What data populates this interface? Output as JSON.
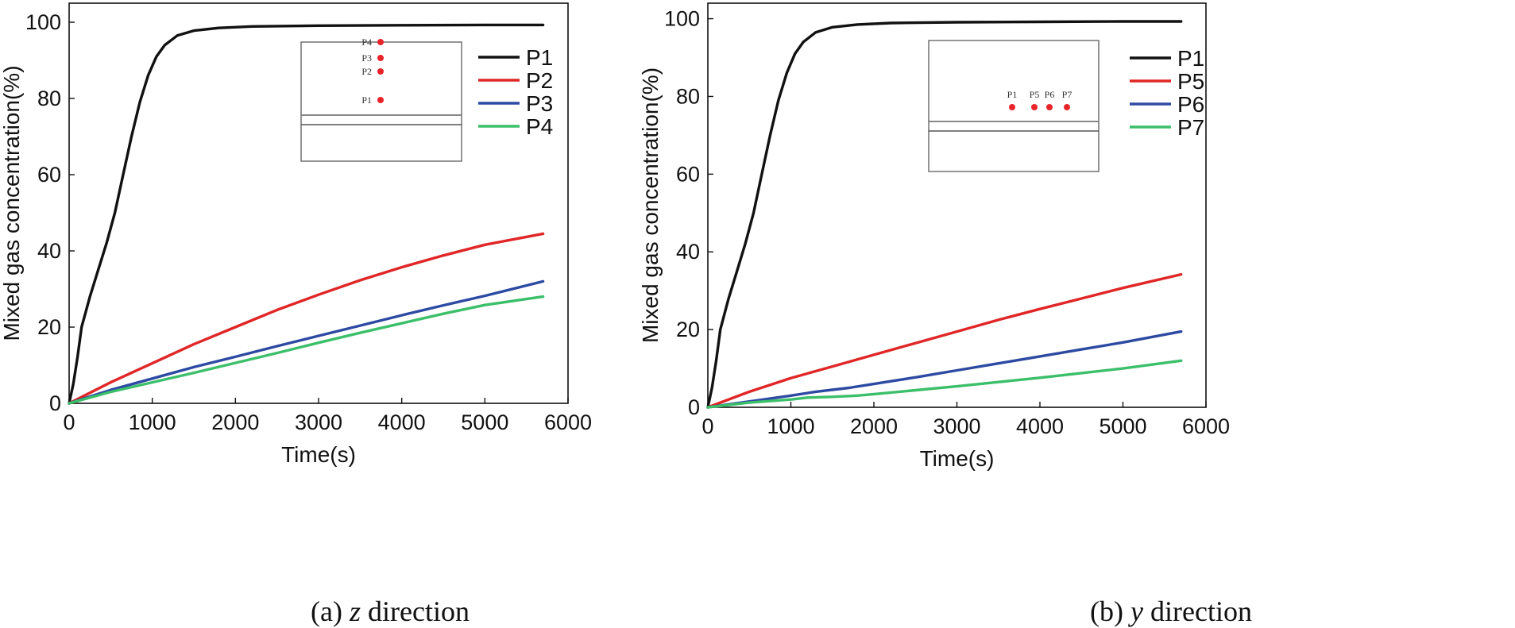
{
  "chart_data": [
    {
      "type": "line",
      "panel": "a",
      "caption": {
        "prefix": "(a) ",
        "axis": "z",
        "suffix": " direction"
      },
      "xlabel": "Time(s)",
      "ylabel": "Mixed gas concentration(%)",
      "xlim": [
        0,
        6000
      ],
      "ylim": [
        0,
        105
      ],
      "xticks": [
        0,
        1000,
        2000,
        3000,
        4000,
        5000,
        6000
      ],
      "yticks": [
        0,
        20,
        40,
        60,
        80,
        100
      ],
      "grid": false,
      "legend_position": "top-right",
      "series": [
        {
          "name": "P1",
          "color": "#111111",
          "points": [
            [
              0,
              0
            ],
            [
              50,
              5
            ],
            [
              100,
              12
            ],
            [
              150,
              20
            ],
            [
              250,
              28
            ],
            [
              350,
              35
            ],
            [
              450,
              42
            ],
            [
              550,
              50
            ],
            [
              650,
              60
            ],
            [
              750,
              70
            ],
            [
              850,
              79
            ],
            [
              950,
              86
            ],
            [
              1050,
              91
            ],
            [
              1150,
              94
            ],
            [
              1300,
              96.5
            ],
            [
              1500,
              97.8
            ],
            [
              1800,
              98.5
            ],
            [
              2200,
              98.9
            ],
            [
              3000,
              99.1
            ],
            [
              4000,
              99.2
            ],
            [
              5000,
              99.3
            ],
            [
              5700,
              99.3
            ]
          ]
        },
        {
          "name": "P2",
          "color": "#e02626",
          "points": [
            [
              0,
              0
            ],
            [
              500,
              5.5
            ],
            [
              1000,
              10.5
            ],
            [
              1500,
              15.5
            ],
            [
              2000,
              20
            ],
            [
              2500,
              24.5
            ],
            [
              3000,
              28.5
            ],
            [
              3500,
              32.3
            ],
            [
              4000,
              35.7
            ],
            [
              4500,
              38.8
            ],
            [
              5000,
              41.6
            ],
            [
              5700,
              44.5
            ]
          ]
        },
        {
          "name": "P3",
          "color": "#2d4aa3",
          "points": [
            [
              0,
              0
            ],
            [
              500,
              3.5
            ],
            [
              1000,
              6.5
            ],
            [
              1500,
              9.5
            ],
            [
              2000,
              12.2
            ],
            [
              2500,
              15
            ],
            [
              3000,
              17.7
            ],
            [
              3500,
              20.4
            ],
            [
              4000,
              23.1
            ],
            [
              4500,
              25.7
            ],
            [
              5000,
              28.2
            ],
            [
              5700,
              32
            ]
          ]
        },
        {
          "name": "P4",
          "color": "#3cbf6a",
          "points": [
            [
              0,
              0
            ],
            [
              500,
              3
            ],
            [
              1000,
              5.5
            ],
            [
              1500,
              8
            ],
            [
              2000,
              10.6
            ],
            [
              2500,
              13.2
            ],
            [
              3000,
              15.9
            ],
            [
              3500,
              18.5
            ],
            [
              4000,
              21
            ],
            [
              4500,
              23.5
            ],
            [
              5000,
              25.8
            ],
            [
              5700,
              28
            ]
          ]
        }
      ],
      "inset": {
        "points": [
          "P4",
          "P3",
          "P2",
          "P1"
        ]
      }
    },
    {
      "type": "line",
      "panel": "b",
      "caption": {
        "prefix": "(b) ",
        "axis": "y",
        "suffix": " direction"
      },
      "xlabel": "Time(s)",
      "ylabel": "Mixed gas concentration(%)",
      "xlim": [
        0,
        6000
      ],
      "ylim": [
        0,
        104
      ],
      "xticks": [
        0,
        1000,
        2000,
        3000,
        4000,
        5000,
        6000
      ],
      "yticks": [
        0,
        20,
        40,
        60,
        80,
        100
      ],
      "grid": false,
      "legend_position": "top-right",
      "series": [
        {
          "name": "P1",
          "color": "#111111",
          "points": [
            [
              0,
              0
            ],
            [
              50,
              5
            ],
            [
              100,
              12
            ],
            [
              150,
              20
            ],
            [
              250,
              28
            ],
            [
              350,
              35
            ],
            [
              450,
              42
            ],
            [
              550,
              50
            ],
            [
              650,
              60
            ],
            [
              750,
              70
            ],
            [
              850,
              79
            ],
            [
              950,
              86
            ],
            [
              1050,
              91
            ],
            [
              1150,
              94
            ],
            [
              1300,
              96.5
            ],
            [
              1500,
              97.8
            ],
            [
              1800,
              98.5
            ],
            [
              2200,
              98.9
            ],
            [
              3000,
              99.1
            ],
            [
              4000,
              99.2
            ],
            [
              5000,
              99.3
            ],
            [
              5700,
              99.3
            ]
          ]
        },
        {
          "name": "P5",
          "color": "#e02626",
          "points": [
            [
              0,
              0
            ],
            [
              500,
              4
            ],
            [
              1000,
              7.5
            ],
            [
              1500,
              10.5
            ],
            [
              2000,
              13.5
            ],
            [
              2500,
              16.5
            ],
            [
              3000,
              19.5
            ],
            [
              3500,
              22.5
            ],
            [
              4000,
              25.3
            ],
            [
              4500,
              28
            ],
            [
              5000,
              30.7
            ],
            [
              5700,
              34.2
            ]
          ]
        },
        {
          "name": "P6",
          "color": "#2d4aa3",
          "points": [
            [
              0,
              0
            ],
            [
              500,
              1.5
            ],
            [
              1000,
              3
            ],
            [
              1300,
              4
            ],
            [
              1700,
              5
            ],
            [
              2000,
              6
            ],
            [
              2500,
              7.7
            ],
            [
              3000,
              9.5
            ],
            [
              3500,
              11.3
            ],
            [
              4000,
              13.1
            ],
            [
              4500,
              14.9
            ],
            [
              5000,
              16.7
            ],
            [
              5700,
              19.5
            ]
          ]
        },
        {
          "name": "P7",
          "color": "#3cbf6a",
          "points": [
            [
              0,
              0
            ],
            [
              500,
              1.2
            ],
            [
              1000,
              2
            ],
            [
              1200,
              2.5
            ],
            [
              1500,
              2.7
            ],
            [
              1800,
              3
            ],
            [
              2000,
              3.4
            ],
            [
              2500,
              4.4
            ],
            [
              3000,
              5.4
            ],
            [
              3500,
              6.5
            ],
            [
              4000,
              7.6
            ],
            [
              4500,
              8.8
            ],
            [
              5000,
              10
            ],
            [
              5700,
              12
            ]
          ]
        }
      ],
      "inset": {
        "points": [
          "P1",
          "P5",
          "P6",
          "P7"
        ]
      }
    }
  ]
}
